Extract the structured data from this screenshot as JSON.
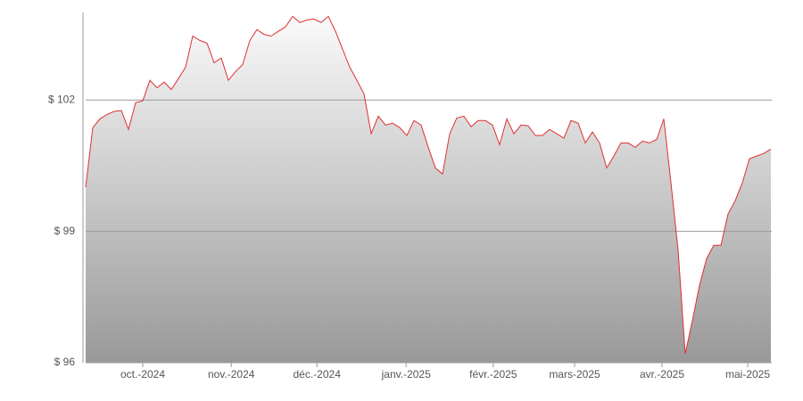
{
  "chart_data": {
    "type": "area",
    "values": [
      100.01,
      101.37,
      101.57,
      101.67,
      101.74,
      101.76,
      101.33,
      101.94,
      101.98,
      102.45,
      102.28,
      102.41,
      102.24,
      102.49,
      102.75,
      103.46,
      103.36,
      103.3,
      102.85,
      102.96,
      102.45,
      102.65,
      102.81,
      103.36,
      103.61,
      103.5,
      103.46,
      103.57,
      103.67,
      103.91,
      103.77,
      103.83,
      103.85,
      103.77,
      103.91,
      103.57,
      103.16,
      102.75,
      102.45,
      102.14,
      101.23,
      101.63,
      101.43,
      101.47,
      101.37,
      101.19,
      101.53,
      101.43,
      100.92,
      100.45,
      100.31,
      101.23,
      101.59,
      101.63,
      101.39,
      101.53,
      101.53,
      101.43,
      100.98,
      101.57,
      101.23,
      101.43,
      101.41,
      101.19,
      101.19,
      101.33,
      101.23,
      101.13,
      101.53,
      101.47,
      101.02,
      101.27,
      101.02,
      100.45,
      100.72,
      101.02,
      101.02,
      100.92,
      101.06,
      101.02,
      101.1,
      101.57,
      100.11,
      98.58,
      96.2,
      96.96,
      97.77,
      98.38,
      98.68,
      98.68,
      99.4,
      99.7,
      100.11,
      100.66,
      100.72,
      100.78,
      100.88
    ],
    "color": "#e03030",
    "xlim": [
      0,
      96
    ],
    "xticks": [
      {
        "value": 8,
        "label": "oct.-2024"
      },
      {
        "value": 20.4,
        "label": "nov.-2024"
      },
      {
        "value": 32.4,
        "label": "déc.-2024"
      },
      {
        "value": 44.9,
        "label": "janv.-2025"
      },
      {
        "value": 57.1,
        "label": "févr.-2025"
      },
      {
        "value": 68.5,
        "label": "mars-2025"
      },
      {
        "value": 80.75,
        "label": "avr.-2025"
      },
      {
        "value": 92.75,
        "label": "mai-2025"
      }
    ],
    "ylim": [
      96,
      104
    ],
    "yticks": [
      {
        "value": 96,
        "label": "$ 96"
      },
      {
        "value": 99,
        "label": "$ 99"
      },
      {
        "value": 102,
        "label": "$ 102"
      }
    ],
    "grid": true
  }
}
